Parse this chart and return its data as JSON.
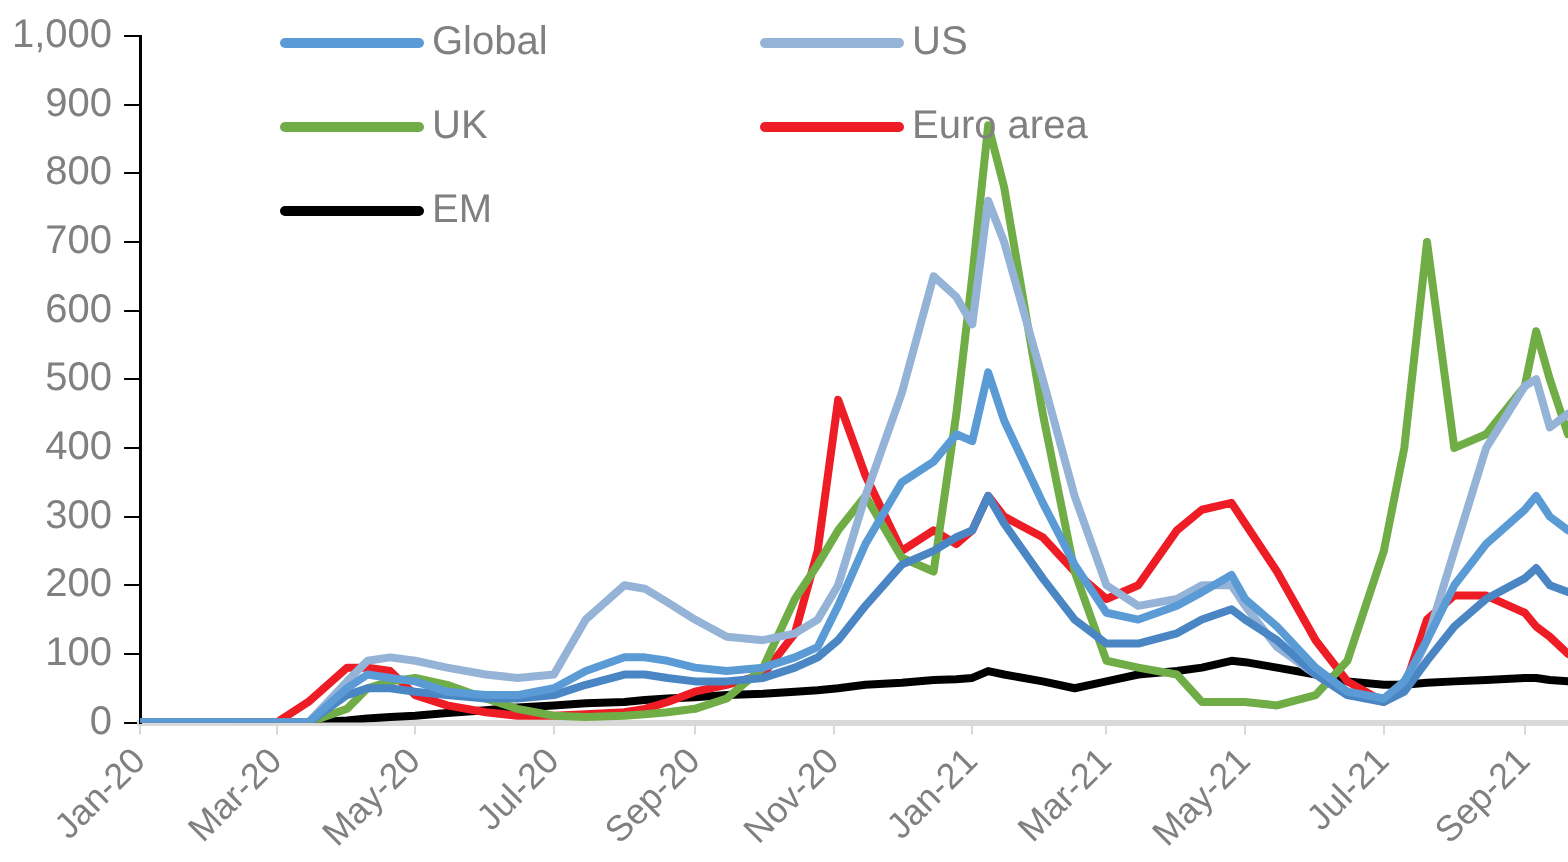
{
  "chart_data": {
    "type": "line",
    "x": [
      "2020-01-01",
      "2020-01-15",
      "2020-02-01",
      "2020-02-15",
      "2020-03-01",
      "2020-03-15",
      "2020-04-01",
      "2020-04-10",
      "2020-04-20",
      "2020-05-01",
      "2020-05-15",
      "2020-06-01",
      "2020-06-15",
      "2020-07-01",
      "2020-07-15",
      "2020-08-01",
      "2020-08-10",
      "2020-08-20",
      "2020-09-01",
      "2020-09-15",
      "2020-10-01",
      "2020-10-15",
      "2020-10-25",
      "2020-11-03",
      "2020-11-15",
      "2020-12-01",
      "2020-12-15",
      "2020-12-25",
      "2021-01-01",
      "2021-01-08",
      "2021-01-15",
      "2021-02-01",
      "2021-02-15",
      "2021-03-01",
      "2021-03-15",
      "2021-04-01",
      "2021-04-12",
      "2021-04-25",
      "2021-05-01",
      "2021-05-15",
      "2021-06-01",
      "2021-06-15",
      "2021-07-01",
      "2021-07-10",
      "2021-07-20",
      "2021-08-01",
      "2021-08-15",
      "2021-09-01",
      "2021-09-06",
      "2021-09-12",
      "2021-09-20"
    ],
    "series": [
      {
        "name": "Global",
        "color": "#5b9bd5",
        "values": [
          0,
          0,
          0,
          0,
          0,
          0,
          50,
          70,
          65,
          60,
          45,
          40,
          40,
          50,
          75,
          95,
          95,
          90,
          80,
          75,
          80,
          95,
          110,
          170,
          260,
          350,
          380,
          420,
          410,
          510,
          440,
          320,
          230,
          160,
          150,
          170,
          190,
          215,
          180,
          140,
          80,
          45,
          35,
          60,
          120,
          200,
          260,
          310,
          330,
          300,
          280
        ]
      },
      {
        "color": "#4a86c4",
        "values": [
          0,
          0,
          0,
          0,
          0,
          0,
          40,
          50,
          50,
          45,
          40,
          35,
          35,
          40,
          55,
          70,
          70,
          65,
          60,
          60,
          65,
          80,
          95,
          120,
          170,
          230,
          250,
          270,
          280,
          330,
          290,
          210,
          150,
          115,
          115,
          130,
          150,
          165,
          150,
          120,
          70,
          40,
          30,
          45,
          90,
          140,
          180,
          210,
          225,
          200,
          190
        ]
      },
      {
        "name": "US",
        "color": "#95b3d7",
        "values": [
          0,
          0,
          0,
          0,
          0,
          0,
          60,
          90,
          95,
          90,
          80,
          70,
          65,
          70,
          150,
          200,
          195,
          175,
          150,
          125,
          120,
          130,
          150,
          200,
          330,
          480,
          650,
          620,
          580,
          760,
          700,
          500,
          330,
          200,
          170,
          180,
          200,
          200,
          170,
          110,
          70,
          40,
          35,
          50,
          120,
          250,
          400,
          490,
          500,
          430,
          450
        ]
      },
      {
        "name": "UK",
        "color": "#70ad47",
        "values": [
          null,
          null,
          null,
          null,
          0,
          0,
          20,
          50,
          60,
          65,
          55,
          35,
          20,
          10,
          8,
          10,
          12,
          15,
          20,
          35,
          80,
          180,
          230,
          280,
          330,
          240,
          220,
          450,
          650,
          870,
          780,
          450,
          220,
          90,
          80,
          70,
          30,
          30,
          30,
          25,
          40,
          90,
          250,
          400,
          700,
          400,
          420,
          490,
          570,
          500,
          420
        ]
      },
      {
        "name": "Euro area",
        "color": "#ee1c25",
        "values": [
          null,
          null,
          null,
          0,
          0,
          30,
          80,
          80,
          75,
          40,
          25,
          15,
          10,
          10,
          12,
          15,
          20,
          30,
          45,
          55,
          70,
          130,
          250,
          470,
          360,
          250,
          280,
          260,
          280,
          330,
          300,
          270,
          220,
          180,
          200,
          280,
          310,
          320,
          290,
          220,
          120,
          60,
          30,
          50,
          150,
          185,
          185,
          160,
          140,
          125,
          100
        ]
      },
      {
        "name": "EM",
        "color": "#000000",
        "values": [
          0,
          0,
          0,
          0,
          0,
          0,
          3,
          6,
          8,
          10,
          14,
          18,
          22,
          25,
          28,
          30,
          33,
          35,
          37,
          40,
          42,
          45,
          47,
          50,
          55,
          58,
          62,
          63,
          65,
          75,
          70,
          60,
          50,
          60,
          70,
          75,
          80,
          90,
          88,
          80,
          70,
          60,
          55,
          55,
          58,
          60,
          62,
          65,
          65,
          62,
          60
        ]
      }
    ],
    "xlim": [
      "2020-01-01",
      "2021-09-20"
    ],
    "xticks": [
      {
        "value": "2020-01-01",
        "label": "Jan-20"
      },
      {
        "value": "2020-03-01",
        "label": "Mar-20"
      },
      {
        "value": "2020-05-01",
        "label": "May-20"
      },
      {
        "value": "2020-07-01",
        "label": "Jul-20"
      },
      {
        "value": "2020-09-01",
        "label": "Sep-20"
      },
      {
        "value": "2020-11-01",
        "label": "Nov-20"
      },
      {
        "value": "2021-01-01",
        "label": "Jan-21"
      },
      {
        "value": "2021-03-01",
        "label": "Mar-21"
      },
      {
        "value": "2021-05-01",
        "label": "May-21"
      },
      {
        "value": "2021-07-01",
        "label": "Jul-21"
      },
      {
        "value": "2021-09-01",
        "label": "Sep-21"
      }
    ],
    "ylim": [
      0,
      1000
    ],
    "yticks": [
      0,
      100,
      200,
      300,
      400,
      500,
      600,
      700,
      800,
      900,
      {
        "value": 1000,
        "label": "1,000"
      }
    ],
    "grid": false,
    "legend": "top",
    "marker": "none",
    "line_style": "solid"
  }
}
